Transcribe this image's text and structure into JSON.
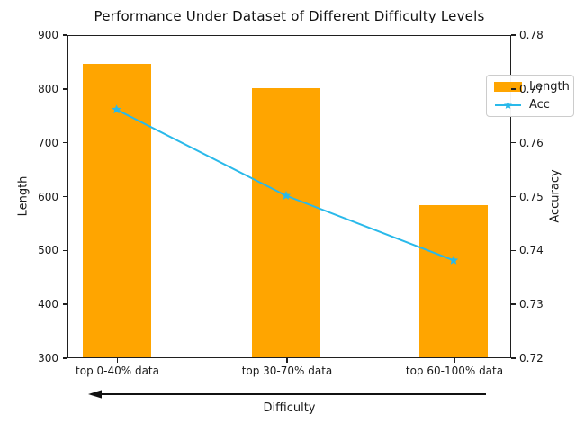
{
  "chart_data": {
    "type": "bar",
    "title": "Performance Under Dataset of Different Difficulty Levels",
    "categories": [
      "top 0-40% data",
      "top 30-70% data",
      "top 60-100% data"
    ],
    "series": [
      {
        "name": "Length",
        "type": "bar",
        "yaxis": "left",
        "color": "#FFA500",
        "values": [
          845,
          800,
          583
        ]
      },
      {
        "name": "Acc",
        "type": "line",
        "yaxis": "right",
        "color": "#29B9EA",
        "marker": "star",
        "values": [
          0.766,
          0.75,
          0.738
        ]
      }
    ],
    "xlabel": "Difficulty",
    "x_axis_arrow_direction": "left",
    "left_axis": {
      "label": "Length",
      "min": 300,
      "max": 900,
      "ticks": [
        300,
        400,
        500,
        600,
        700,
        800,
        900
      ]
    },
    "right_axis": {
      "label": "Accuracy",
      "min": 0.72,
      "max": 0.78,
      "ticks": [
        "0.72",
        "0.73",
        "0.74",
        "0.75",
        "0.76",
        "0.77",
        "0.78"
      ]
    },
    "legend": {
      "position": "upper right"
    },
    "grid": false
  }
}
